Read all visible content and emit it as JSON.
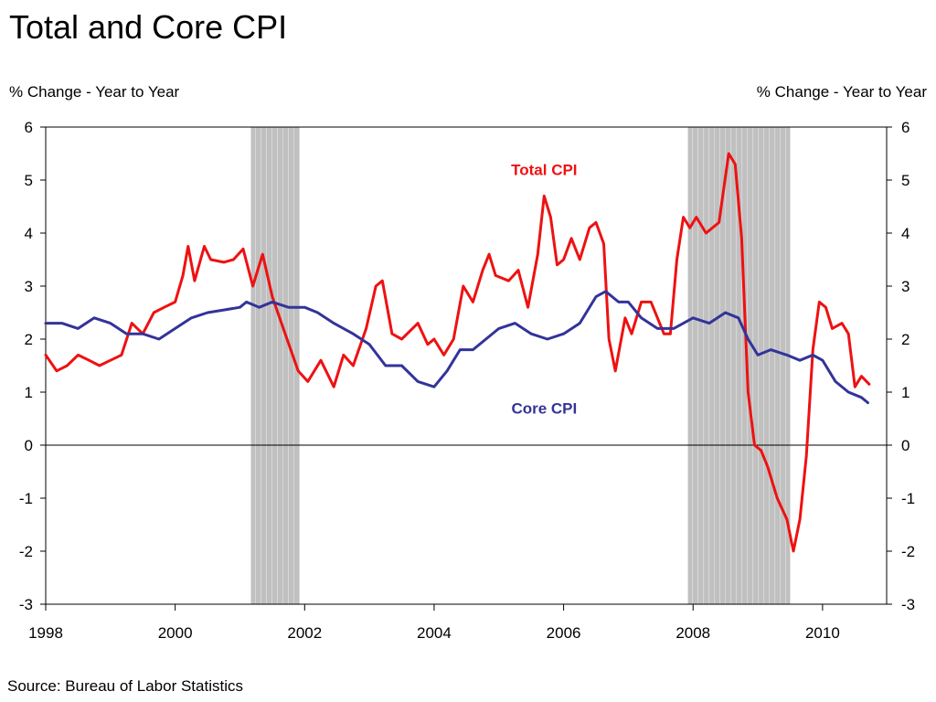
{
  "title": "Total and Core CPI",
  "source": "Source: Bureau of Labor Statistics",
  "chart_data": {
    "type": "line",
    "title": "Total and Core CPI",
    "ylabel_left": "% Change - Year to Year",
    "ylabel_right": "% Change - Year to Year",
    "xlim": [
      1998,
      2010.99
    ],
    "ylim": [
      -3,
      6
    ],
    "yticks": [
      "6",
      "5",
      "4",
      "3",
      "2",
      "1",
      "0",
      "-1",
      "-2",
      "-3"
    ],
    "xticks": [
      "1998",
      "2000",
      "2002",
      "2004",
      "2006",
      "2008",
      "2010"
    ],
    "recessions": [
      [
        2001.17,
        2001.92
      ],
      [
        2007.92,
        2009.5
      ]
    ],
    "zero_line": true,
    "series": [
      {
        "name": "Total CPI",
        "color": "#ee1111",
        "points": [
          [
            1998.0,
            1.7
          ],
          [
            1998.17,
            1.4
          ],
          [
            1998.33,
            1.5
          ],
          [
            1998.5,
            1.7
          ],
          [
            1998.67,
            1.6
          ],
          [
            1998.83,
            1.5
          ],
          [
            1999.0,
            1.6
          ],
          [
            1999.17,
            1.7
          ],
          [
            1999.33,
            2.3
          ],
          [
            1999.5,
            2.1
          ],
          [
            1999.67,
            2.5
          ],
          [
            1999.83,
            2.6
          ],
          [
            2000.0,
            2.7
          ],
          [
            2000.12,
            3.2
          ],
          [
            2000.2,
            3.75
          ],
          [
            2000.3,
            3.1
          ],
          [
            2000.45,
            3.75
          ],
          [
            2000.55,
            3.5
          ],
          [
            2000.75,
            3.45
          ],
          [
            2000.9,
            3.5
          ],
          [
            2001.05,
            3.7
          ],
          [
            2001.2,
            3.0
          ],
          [
            2001.35,
            3.6
          ],
          [
            2001.5,
            2.8
          ],
          [
            2001.7,
            2.1
          ],
          [
            2001.9,
            1.4
          ],
          [
            2002.05,
            1.2
          ],
          [
            2002.25,
            1.6
          ],
          [
            2002.45,
            1.1
          ],
          [
            2002.6,
            1.7
          ],
          [
            2002.75,
            1.5
          ],
          [
            2002.95,
            2.2
          ],
          [
            2003.1,
            3.0
          ],
          [
            2003.2,
            3.1
          ],
          [
            2003.35,
            2.1
          ],
          [
            2003.5,
            2.0
          ],
          [
            2003.75,
            2.3
          ],
          [
            2003.9,
            1.9
          ],
          [
            2004.0,
            2.0
          ],
          [
            2004.15,
            1.7
          ],
          [
            2004.3,
            2.0
          ],
          [
            2004.45,
            3.0
          ],
          [
            2004.6,
            2.7
          ],
          [
            2004.75,
            3.3
          ],
          [
            2004.85,
            3.6
          ],
          [
            2004.95,
            3.2
          ],
          [
            2005.15,
            3.1
          ],
          [
            2005.3,
            3.3
          ],
          [
            2005.45,
            2.6
          ],
          [
            2005.6,
            3.6
          ],
          [
            2005.7,
            4.7
          ],
          [
            2005.8,
            4.3
          ],
          [
            2005.9,
            3.4
          ],
          [
            2006.0,
            3.5
          ],
          [
            2006.12,
            3.9
          ],
          [
            2006.25,
            3.5
          ],
          [
            2006.4,
            4.1
          ],
          [
            2006.5,
            4.2
          ],
          [
            2006.62,
            3.8
          ],
          [
            2006.7,
            2.0
          ],
          [
            2006.8,
            1.4
          ],
          [
            2006.95,
            2.4
          ],
          [
            2007.05,
            2.1
          ],
          [
            2007.2,
            2.7
          ],
          [
            2007.35,
            2.7
          ],
          [
            2007.55,
            2.1
          ],
          [
            2007.65,
            2.1
          ],
          [
            2007.75,
            3.5
          ],
          [
            2007.85,
            4.3
          ],
          [
            2007.95,
            4.1
          ],
          [
            2008.05,
            4.3
          ],
          [
            2008.2,
            4.0
          ],
          [
            2008.4,
            4.2
          ],
          [
            2008.55,
            5.5
          ],
          [
            2008.65,
            5.3
          ],
          [
            2008.75,
            3.9
          ],
          [
            2008.85,
            1.0
          ],
          [
            2008.95,
            0.0
          ],
          [
            2009.05,
            -0.1
          ],
          [
            2009.15,
            -0.4
          ],
          [
            2009.3,
            -1.0
          ],
          [
            2009.45,
            -1.4
          ],
          [
            2009.55,
            -2.0
          ],
          [
            2009.65,
            -1.4
          ],
          [
            2009.75,
            -0.2
          ],
          [
            2009.85,
            1.8
          ],
          [
            2009.95,
            2.7
          ],
          [
            2010.05,
            2.6
          ],
          [
            2010.15,
            2.2
          ],
          [
            2010.3,
            2.3
          ],
          [
            2010.4,
            2.1
          ],
          [
            2010.5,
            1.1
          ],
          [
            2010.6,
            1.3
          ],
          [
            2010.72,
            1.15
          ]
        ]
      },
      {
        "name": "Core CPI",
        "color": "#33339a",
        "points": [
          [
            1998.0,
            2.3
          ],
          [
            1998.25,
            2.3
          ],
          [
            1998.5,
            2.2
          ],
          [
            1998.75,
            2.4
          ],
          [
            1999.0,
            2.3
          ],
          [
            1999.25,
            2.1
          ],
          [
            1999.5,
            2.1
          ],
          [
            1999.75,
            2.0
          ],
          [
            2000.0,
            2.2
          ],
          [
            2000.25,
            2.4
          ],
          [
            2000.5,
            2.5
          ],
          [
            2000.75,
            2.55
          ],
          [
            2001.0,
            2.6
          ],
          [
            2001.1,
            2.7
          ],
          [
            2001.3,
            2.6
          ],
          [
            2001.5,
            2.7
          ],
          [
            2001.75,
            2.6
          ],
          [
            2002.0,
            2.6
          ],
          [
            2002.2,
            2.5
          ],
          [
            2002.45,
            2.3
          ],
          [
            2002.75,
            2.1
          ],
          [
            2003.0,
            1.9
          ],
          [
            2003.25,
            1.5
          ],
          [
            2003.5,
            1.5
          ],
          [
            2003.75,
            1.2
          ],
          [
            2004.0,
            1.1
          ],
          [
            2004.2,
            1.4
          ],
          [
            2004.4,
            1.8
          ],
          [
            2004.6,
            1.8
          ],
          [
            2004.8,
            2.0
          ],
          [
            2005.0,
            2.2
          ],
          [
            2005.25,
            2.3
          ],
          [
            2005.5,
            2.1
          ],
          [
            2005.75,
            2.0
          ],
          [
            2006.0,
            2.1
          ],
          [
            2006.25,
            2.3
          ],
          [
            2006.5,
            2.8
          ],
          [
            2006.65,
            2.9
          ],
          [
            2006.85,
            2.7
          ],
          [
            2007.0,
            2.7
          ],
          [
            2007.2,
            2.4
          ],
          [
            2007.45,
            2.2
          ],
          [
            2007.7,
            2.2
          ],
          [
            2008.0,
            2.4
          ],
          [
            2008.25,
            2.3
          ],
          [
            2008.5,
            2.5
          ],
          [
            2008.7,
            2.4
          ],
          [
            2008.85,
            2.0
          ],
          [
            2009.0,
            1.7
          ],
          [
            2009.2,
            1.8
          ],
          [
            2009.45,
            1.7
          ],
          [
            2009.65,
            1.6
          ],
          [
            2009.85,
            1.7
          ],
          [
            2010.0,
            1.6
          ],
          [
            2010.2,
            1.2
          ],
          [
            2010.4,
            1.0
          ],
          [
            2010.6,
            0.9
          ],
          [
            2010.7,
            0.8
          ]
        ]
      }
    ],
    "annotations": [
      {
        "text": "Total CPI",
        "x": 2005.7,
        "y": 5.2,
        "color": "#ee1111"
      },
      {
        "text": "Core CPI",
        "x": 2005.7,
        "y": 0.7,
        "color": "#33339a"
      }
    ]
  }
}
